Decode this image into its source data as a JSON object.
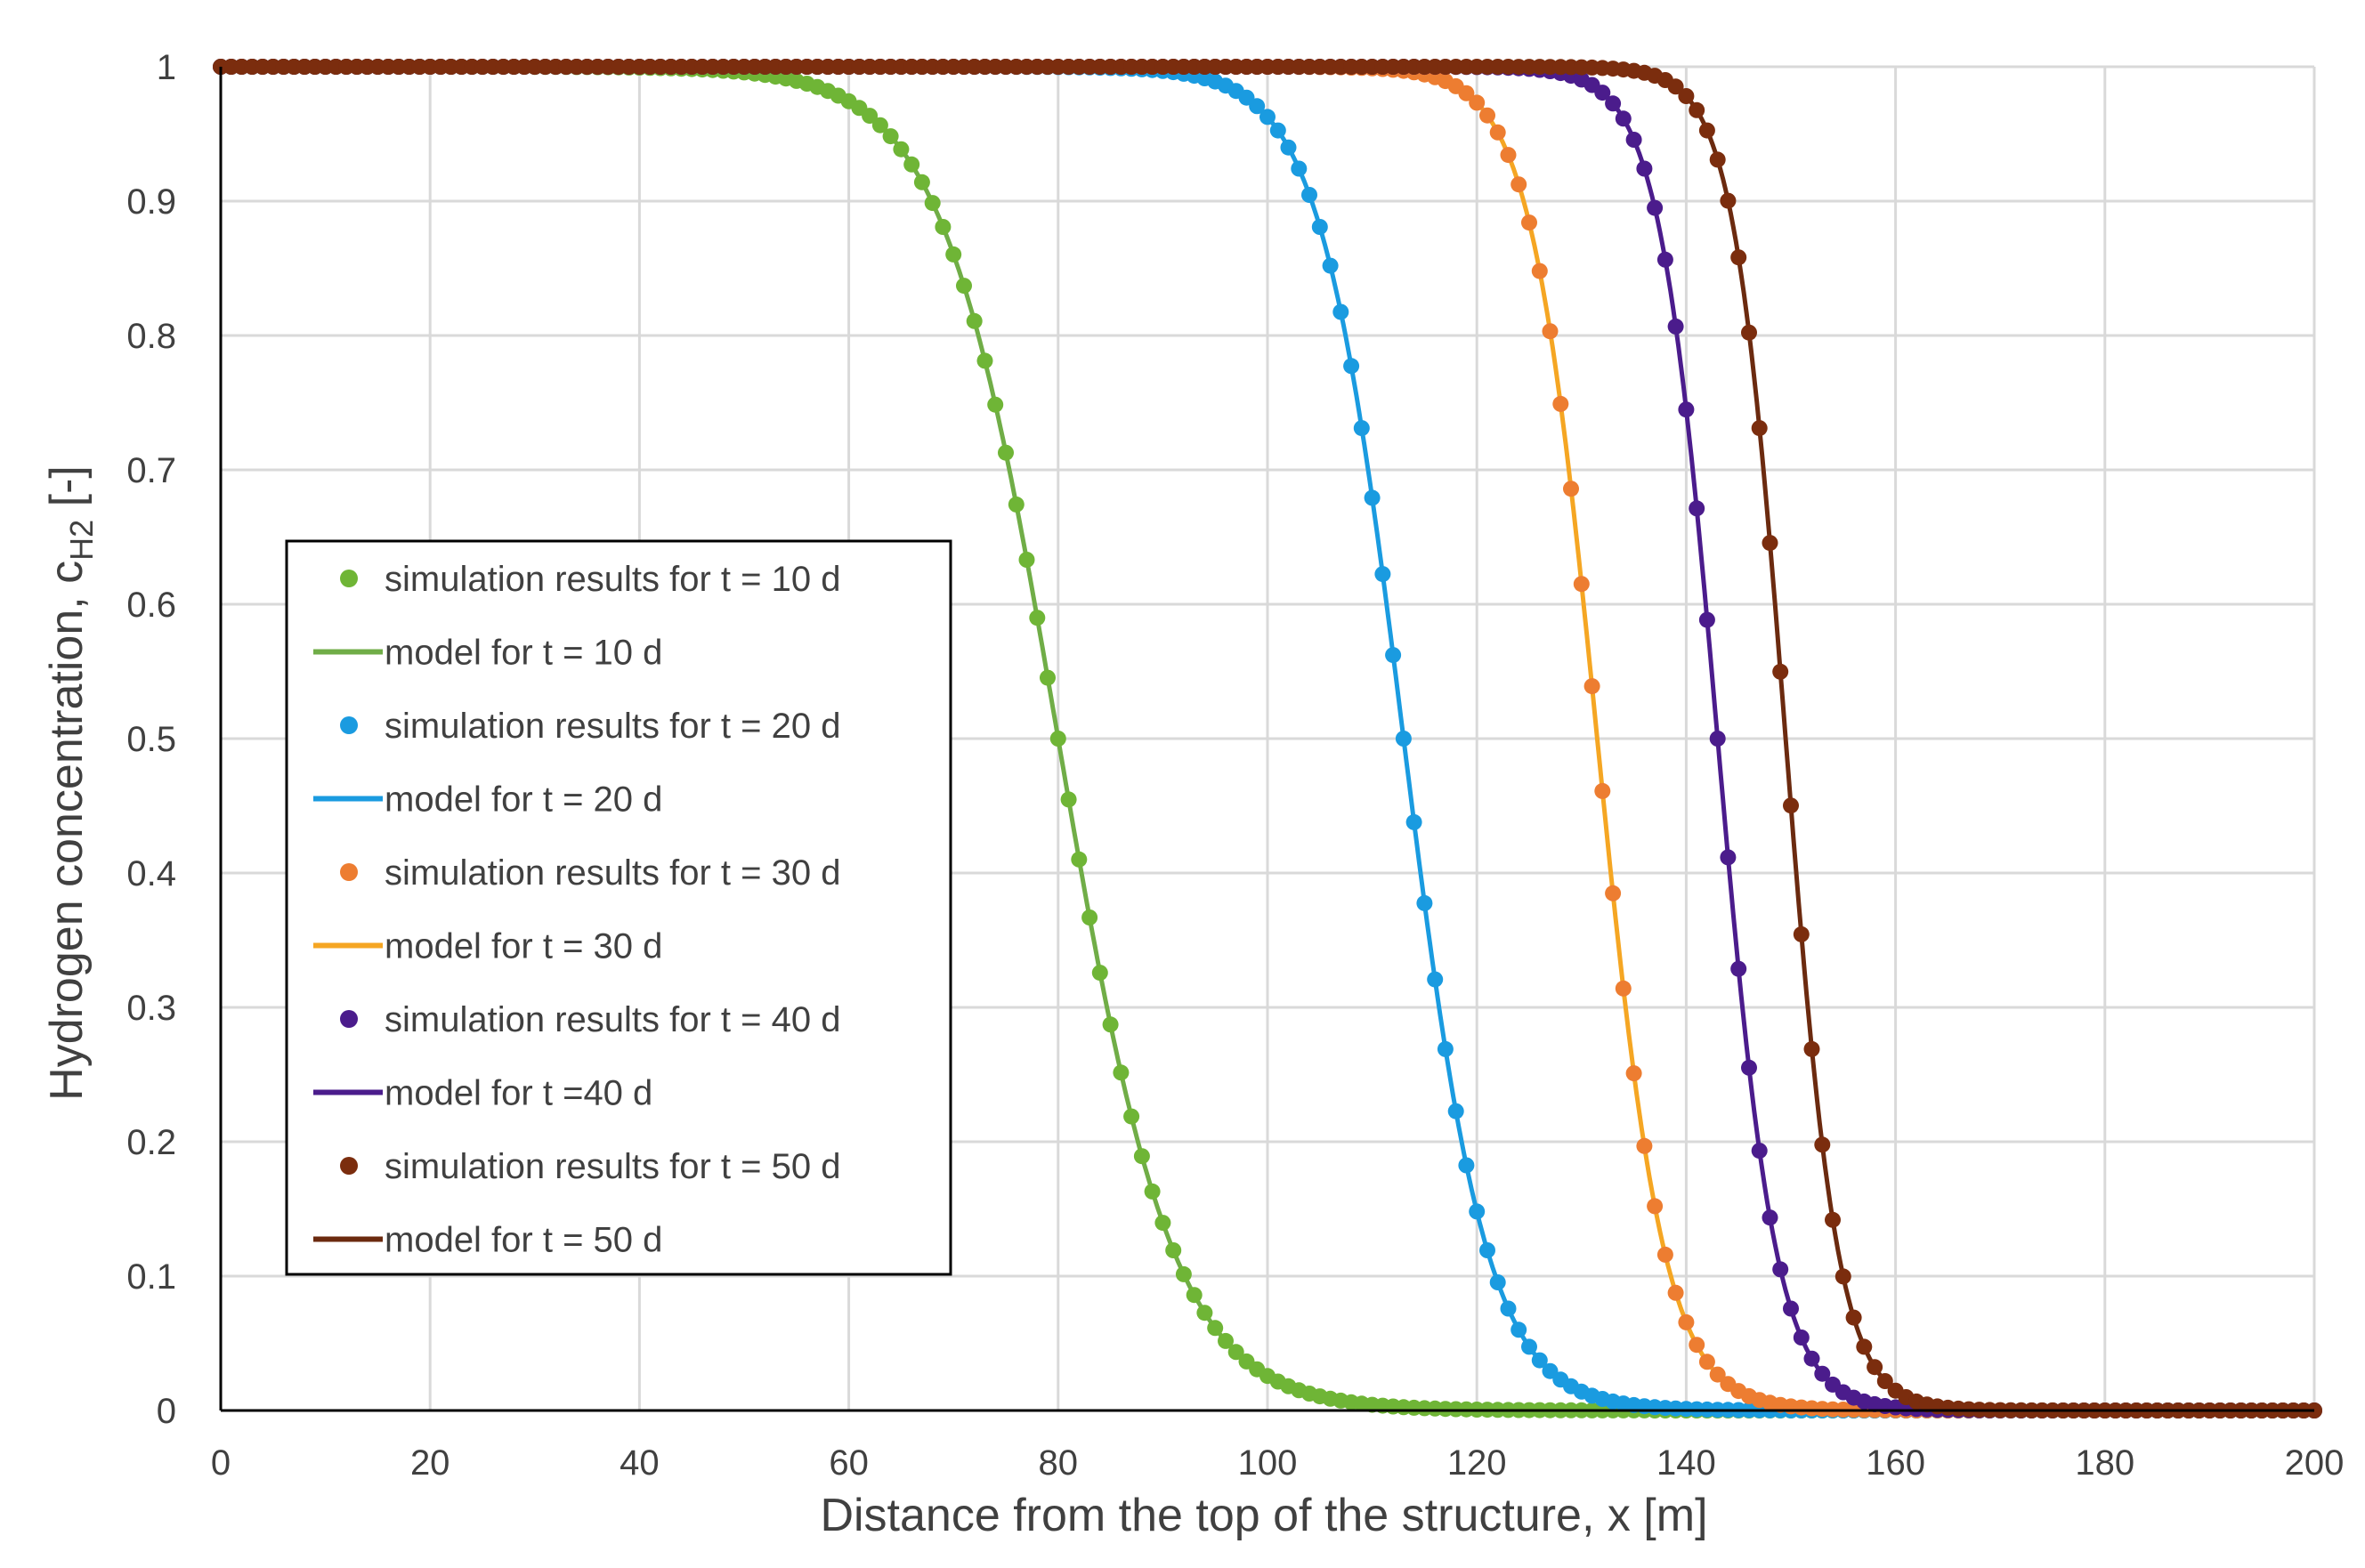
{
  "chart_data": {
    "type": "scatter",
    "title": "",
    "xlabel": "Distance from the top of the structure, x [m]",
    "ylabel_main": "Hydrogen concentration, c",
    "ylabel_sub": "H2",
    "ylabel_tail": " [-]",
    "xlim": [
      0,
      200
    ],
    "ylim": [
      0,
      1
    ],
    "xticks": [
      0,
      20,
      40,
      60,
      80,
      100,
      120,
      140,
      160,
      180,
      200
    ],
    "yticks": [
      0,
      0.1,
      0.2,
      0.3,
      0.4,
      0.5,
      0.6,
      0.7,
      0.8,
      0.9,
      1
    ],
    "xtick_labels": [
      "0",
      "20",
      "40",
      "60",
      "80",
      "100",
      "120",
      "140",
      "160",
      "180",
      "200"
    ],
    "ytick_labels": [
      "0",
      "0.1",
      "0.2",
      "0.3",
      "0.4",
      "0.5",
      "0.6",
      "0.7",
      "0.8",
      "0.9",
      "1"
    ],
    "grid": true,
    "legend_position": "middle-left",
    "series": [
      {
        "t_days": 10,
        "center_x": 80,
        "width": 5.5,
        "color": "#6fb536",
        "line_color": "#70ad47",
        "points_name": "simulation results for t = 10 d",
        "line_name": "model for t = 10 d"
      },
      {
        "t_days": 20,
        "center_x": 113,
        "width": 4.0,
        "color": "#1a9be0",
        "line_color": "#1a9be0",
        "points_name": "simulation results for t = 20 d",
        "line_name": "model for t = 20 d"
      },
      {
        "t_days": 30,
        "center_x": 131.5,
        "width": 3.2,
        "color": "#ed7d31",
        "line_color": "#f5a623",
        "points_name": "simulation results for t = 30 d",
        "line_name": "model for t = 30 d"
      },
      {
        "t_days": 40,
        "center_x": 143,
        "width": 2.8,
        "color": "#4b1c8c",
        "line_color": "#4b1c8c",
        "points_name": "simulation results for t = 40 d",
        "line_name": "model for t =40 d"
      },
      {
        "t_days": 50,
        "center_x": 149.5,
        "width": 2.5,
        "color": "#7b2d0e",
        "line_color": "#6b2a0f",
        "points_name": "simulation results for t = 50 d",
        "line_name": "model for t = 50 d"
      }
    ]
  }
}
